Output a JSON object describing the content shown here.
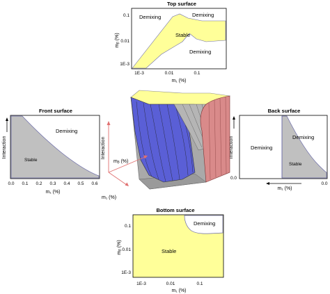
{
  "colors": {
    "stable_yellow": "#ffff99",
    "stable_gray": "#c0c0c0",
    "blue_surface": "#5a5fd6",
    "red_surface": "#d98a8a",
    "gray_solid": "#a9a9a9",
    "boundary": "#6a6aa8",
    "arrow_red": "#e07070"
  },
  "top_panel": {
    "title": "Top surface",
    "ylabel": "mᵦ (%)",
    "xlabel": "m₁ (%)",
    "yticks": [
      "0.1",
      "0.01",
      "1E-3"
    ],
    "xticks": [
      "1E-3",
      "0.01",
      "0.1"
    ],
    "regions": {
      "left": "Demixing",
      "right_top": "Demixing",
      "middle": "Stable",
      "right_bottom": "Demixing"
    }
  },
  "front_panel": {
    "title": "Front surface",
    "ylabel": "Interaction",
    "xlabel": "m₁ (%)",
    "xticks": [
      "0.0",
      "0.1",
      "0.2",
      "0.3",
      "0.4",
      "0.5",
      "0.6"
    ],
    "regions": {
      "upper": "Demixing",
      "lower": "Stable"
    }
  },
  "back_panel": {
    "title": "Back surface",
    "ylabel": "Interaction",
    "xlabel": "m₁ (%)",
    "ytick": "0.0",
    "xtick": "0.0",
    "regions": {
      "left": "Demixing",
      "right": "Demixing",
      "lower": "Stable"
    }
  },
  "bottom_panel": {
    "title": "Bottom surface",
    "ylabel": "mᵦ (%)",
    "xlabel": "m₁ (%)",
    "yticks": [
      "0.1",
      "0.01",
      "1E-3"
    ],
    "xticks": [
      "1E-3",
      "0.01",
      "0.1"
    ],
    "regions": {
      "corner": "Demixing",
      "main": "Stable"
    }
  },
  "center_3d": {
    "axis_interaction": "Interaction",
    "axis_mb": "mᵦ (%)",
    "axis_ms": "m₁ (%)"
  }
}
